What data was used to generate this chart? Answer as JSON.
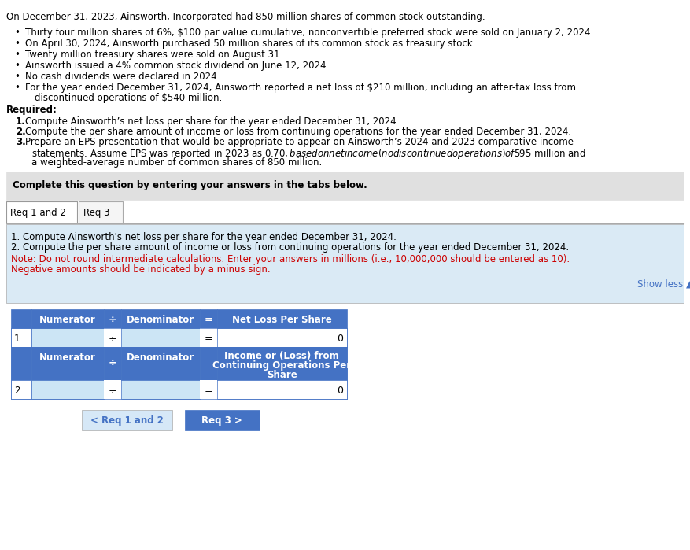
{
  "bg_color": "#ffffff",
  "intro_text": "On December 31, 2023, Ainsworth, Incorporated had 850 million shares of common stock outstanding.",
  "bullet1": "Thirty four million shares of 6%, $100 par value cumulative, nonconvertible preferred stock were sold on January 2, 2024.",
  "bullet2": "On April 30, 2024, Ainsworth purchased 50 million shares of its common stock as treasury stock.",
  "bullet3": "Twenty million treasury shares were sold on August 31.",
  "bullet4": "Ainsworth issued a 4% common stock dividend on June 12, 2024.",
  "bullet5": "No cash dividends were declared in 2024.",
  "bullet6a": "For the year ended December 31, 2024, Ainsworth reported a net loss of $210 million, including an after-tax loss from",
  "bullet6b": "discontinued operations of $540 million.",
  "required_label": "Required:",
  "req1": "Compute Ainsworth’s net loss per share for the year ended December 31, 2024.",
  "req2": "Compute the per share amount of income or loss from continuing operations for the year ended December 31, 2024.",
  "req3a": "Prepare an EPS presentation that would be appropriate to appear on Ainsworth’s 2024 and 2023 comparative income",
  "req3b": "statements. Assume EPS was reported in 2023 as $0.70, based on net income (no discontinued operations) of $595 million and",
  "req3c": "a weighted-average number of common shares of 850 million.",
  "gray_box_text": "Complete this question by entering your answers in the tabs below.",
  "gray_box_color": "#e0e0e0",
  "tab1_label": "Req 1 and 2",
  "tab2_label": "Req 3",
  "blue_box_color": "#daeaf5",
  "instr1": "1. Compute Ainsworth's net loss per share for the year ended December 31, 2024.",
  "instr2": "2. Compute the per share amount of income or loss from continuing operations for the year ended December 31, 2024.",
  "note1": "Note: Do not round intermediate calculations. Enter your answers in millions (i.e., 10,000,000 should be entered as 10).",
  "note2": "Negative amounts should be indicated by a minus sign.",
  "note_color": "#cc0000",
  "show_less_text": "Show less ▲",
  "show_less_color": "#4472c4",
  "table_header_color": "#4472c4",
  "table_header_text_color": "#ffffff",
  "table_input_color": "#cce5f5",
  "table_border_color": "#4472c4",
  "col_divide": "÷",
  "col_equals": "=",
  "col_numerator": "Numerator",
  "col_denominator": "Denominator",
  "col_result1": "Net Loss Per Share",
  "col_result2_line1": "Income or (Loss) from",
  "col_result2_line2": "Continuing Operations Per",
  "col_result2_line3": "Share",
  "row_value": "0",
  "btn1_label": "< Req 1 and 2",
  "btn2_label": "Req 3 >",
  "btn1_bg": "#d6e8f7",
  "btn1_fg": "#4472c4",
  "btn2_bg": "#4472c4",
  "btn2_fg": "#ffffff"
}
